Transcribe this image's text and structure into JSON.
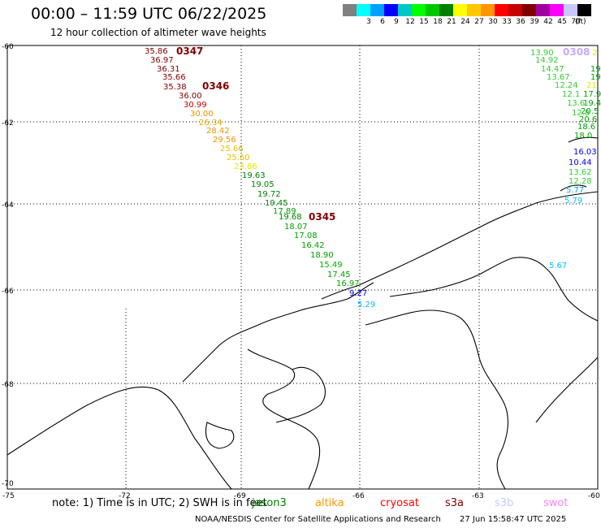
{
  "header": {
    "title": "00:00 – 11:59 UTC 06/22/2025",
    "subtitle": "12 hour collection of altimeter wave heights"
  },
  "legend": {
    "unit": "(ft)",
    "items": [
      {
        "color": "#808080",
        "value": ""
      },
      {
        "color": "#00ffff",
        "value": "3"
      },
      {
        "color": "#00a0ff",
        "value": "6"
      },
      {
        "color": "#0000ff",
        "value": "9"
      },
      {
        "color": "#00c8c8",
        "value": "12"
      },
      {
        "color": "#00ff00",
        "value": "15"
      },
      {
        "color": "#00c800",
        "value": "18"
      },
      {
        "color": "#008000",
        "value": "21"
      },
      {
        "color": "#ffff00",
        "value": "24"
      },
      {
        "color": "#ffc800",
        "value": "27"
      },
      {
        "color": "#ff9600",
        "value": "30"
      },
      {
        "color": "#ff0000",
        "value": "33"
      },
      {
        "color": "#c80000",
        "value": "36"
      },
      {
        "color": "#800000",
        "value": "39"
      },
      {
        "color": "#a000a0",
        "value": "42"
      },
      {
        "color": "#ff00ff",
        "value": "45"
      },
      {
        "color": "#c8c8ff",
        "value": "70"
      },
      {
        "color": "#000000",
        "value": ""
      }
    ]
  },
  "map": {
    "lat_labels": [
      "-60",
      "-62",
      "-64",
      "-66",
      "-68",
      "-70"
    ],
    "lon_labels": [
      "-75",
      "-72",
      "-69",
      "-66",
      "-63",
      "-60"
    ],
    "passes": [
      {
        "label": "0347",
        "color": "#800000"
      },
      {
        "label": "0346",
        "color": "#800000"
      },
      {
        "label": "0345",
        "color": "#800000"
      },
      {
        "label": "0308",
        "color": "#c8a8ff"
      }
    ],
    "track_west": [
      {
        "v": "35.86",
        "c": "#800000"
      },
      {
        "v": "36.97",
        "c": "#800000"
      },
      {
        "v": "36.31",
        "c": "#800000"
      },
      {
        "v": "35.66",
        "c": "#800000"
      },
      {
        "v": "35.38",
        "c": "#800000"
      },
      {
        "v": "36.00",
        "c": "#800000"
      },
      {
        "v": "30.99",
        "c": "#cc0000"
      },
      {
        "v": "30.00",
        "c": "#e69500"
      },
      {
        "v": "26.34",
        "c": "#e6a800"
      },
      {
        "v": "28.42",
        "c": "#e69500"
      },
      {
        "v": "29.56",
        "c": "#e69500"
      },
      {
        "v": "25.66",
        "c": "#e6c000"
      },
      {
        "v": "25.60",
        "c": "#e6c000"
      },
      {
        "v": "23.86",
        "c": "#e6e600"
      },
      {
        "v": "19.63",
        "c": "#008000"
      },
      {
        "v": "19.05",
        "c": "#008000"
      },
      {
        "v": "19.72",
        "c": "#008000"
      },
      {
        "v": "19.45",
        "c": "#008000"
      },
      {
        "v": "17.89",
        "c": "#00a000"
      },
      {
        "v": "19.68",
        "c": "#008000"
      },
      {
        "v": "18.07",
        "c": "#00a000"
      },
      {
        "v": "17.08",
        "c": "#00a000"
      },
      {
        "v": "16.42",
        "c": "#00a000"
      },
      {
        "v": "18.90",
        "c": "#00a000"
      },
      {
        "v": "15.49",
        "c": "#00b000"
      },
      {
        "v": "17.45",
        "c": "#00a000"
      },
      {
        "v": "16.97",
        "c": "#00a000"
      },
      {
        "v": "9.27",
        "c": "#0000ff"
      },
      {
        "v": "5.29",
        "c": "#00c0ff"
      }
    ],
    "track_east": [
      {
        "v": "13.90",
        "c": "#33cc33"
      },
      {
        "v": "14.92",
        "c": "#33cc33"
      },
      {
        "v": "14.47",
        "c": "#33cc33"
      },
      {
        "v": "13.67",
        "c": "#33cc33"
      },
      {
        "v": "12.24",
        "c": "#33cc33"
      },
      {
        "v": "12.1",
        "c": "#33cc33"
      },
      {
        "v": "13.6",
        "c": "#33cc33"
      },
      {
        "v": "12.8",
        "c": "#33cc33"
      },
      {
        "v": "18.0",
        "c": "#00a000"
      },
      {
        "v": "16.03",
        "c": "#0000ff"
      },
      {
        "v": "10.44",
        "c": "#0000ff"
      },
      {
        "v": "13.62",
        "c": "#33cc33"
      },
      {
        "v": "12.28",
        "c": "#33cc33"
      },
      {
        "v": "5.77",
        "c": "#00a0ff"
      },
      {
        "v": "5.79",
        "c": "#00c0ff"
      }
    ],
    "east_extra": [
      {
        "v": "2",
        "c": "#e6e600"
      },
      {
        "v": "19",
        "c": "#00a000"
      },
      {
        "v": "19",
        "c": "#00a000"
      },
      {
        "v": "21",
        "c": "#e6e600"
      },
      {
        "v": "17.9",
        "c": "#00a000"
      },
      {
        "v": "19.4",
        "c": "#00a000"
      },
      {
        "v": "20.5",
        "c": "#00a000"
      },
      {
        "v": "20.6",
        "c": "#00a000"
      },
      {
        "v": "18.6",
        "c": "#00a000"
      }
    ],
    "isolated": [
      {
        "v": "5.67",
        "c": "#00c0ff"
      }
    ]
  },
  "footer": {
    "note": "note:  1) Time is in UTC; 2) SWH is in feet",
    "satellites": [
      {
        "name": "jason3",
        "color": "#008000"
      },
      {
        "name": "altika",
        "color": "#ff9600"
      },
      {
        "name": "cryosat",
        "color": "#ff0000"
      },
      {
        "name": "s3a",
        "color": "#800000"
      },
      {
        "name": "s3b",
        "color": "#c8c8ff"
      },
      {
        "name": "swot",
        "color": "#ff80ff"
      }
    ],
    "credit": "NOAA/NESDIS Center for Satellite Applications and Research",
    "timestamp": "27 Jun 15:58:47 UTC 2025"
  }
}
